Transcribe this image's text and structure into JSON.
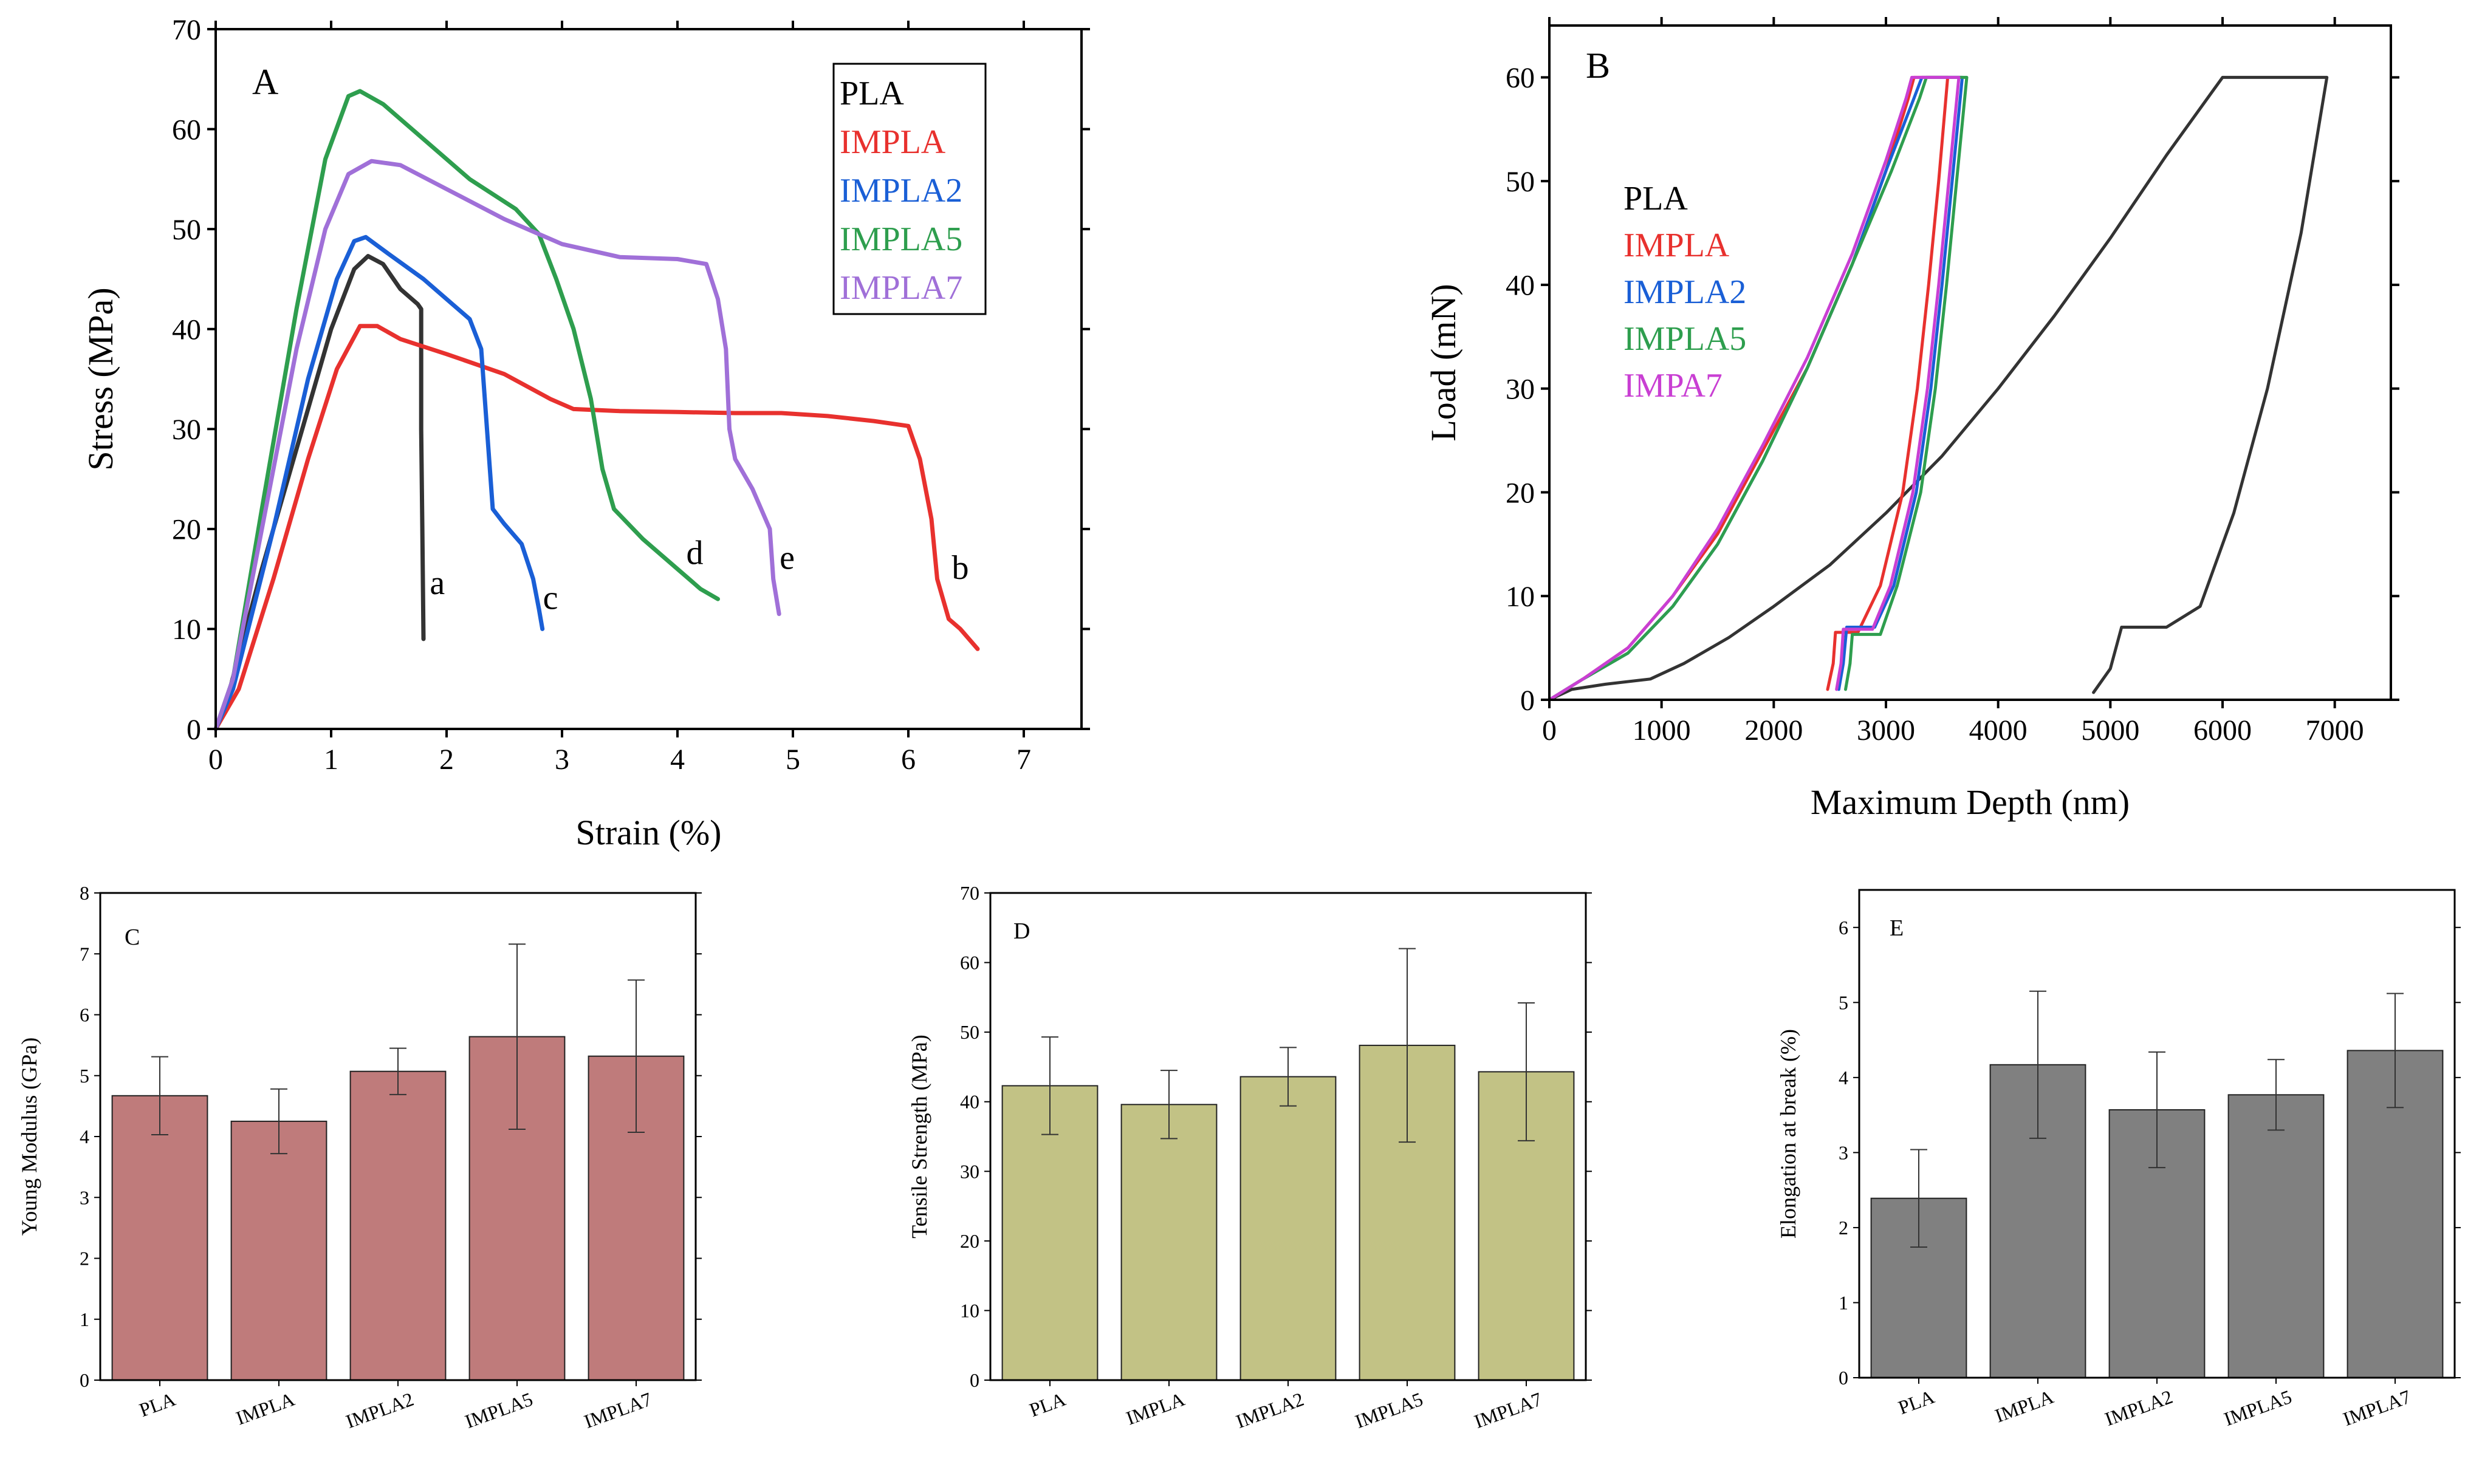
{
  "chart_data": [
    {
      "id": "A",
      "type": "line",
      "panel_label": "A",
      "xlabel": "Strain (%)",
      "ylabel": "Stress (MPa)",
      "xlim": [
        0,
        7.5
      ],
      "ylim": [
        0,
        70
      ],
      "xticks": [
        0,
        1,
        2,
        3,
        4,
        5,
        6,
        7
      ],
      "yticks": [
        0,
        10,
        20,
        30,
        40,
        50,
        60,
        70
      ],
      "legend": [
        "PLA",
        "IMPLA",
        "IMPLA2",
        "IMPLA5",
        "IMPLA7"
      ],
      "series": [
        {
          "name": "PLA",
          "color": "#333333",
          "points": [
            [
              0,
              0
            ],
            [
              0.1,
              3
            ],
            [
              0.4,
              16
            ],
            [
              0.8,
              32
            ],
            [
              1.0,
              40
            ],
            [
              1.2,
              46
            ],
            [
              1.32,
              47.3
            ],
            [
              1.45,
              46.5
            ],
            [
              1.6,
              44
            ],
            [
              1.75,
              42.5
            ],
            [
              1.78,
              42
            ],
            [
              1.78,
              30
            ],
            [
              1.79,
              20
            ],
            [
              1.8,
              9
            ]
          ]
        },
        {
          "name": "IMPLA",
          "color": "#e8312e",
          "points": [
            [
              0,
              0
            ],
            [
              0.2,
              4
            ],
            [
              0.5,
              15
            ],
            [
              0.8,
              27
            ],
            [
              1.05,
              36
            ],
            [
              1.25,
              40.3
            ],
            [
              1.4,
              40.3
            ],
            [
              1.6,
              39
            ],
            [
              2.0,
              37.5
            ],
            [
              2.5,
              35.5
            ],
            [
              2.9,
              33
            ],
            [
              3.1,
              32
            ],
            [
              3.5,
              31.8
            ],
            [
              4.0,
              31.7
            ],
            [
              4.5,
              31.6
            ],
            [
              4.9,
              31.6
            ],
            [
              5.3,
              31.3
            ],
            [
              5.7,
              30.8
            ],
            [
              6.0,
              30.3
            ],
            [
              6.1,
              27
            ],
            [
              6.2,
              21
            ],
            [
              6.25,
              15
            ],
            [
              6.3,
              13
            ],
            [
              6.35,
              11
            ],
            [
              6.45,
              10
            ],
            [
              6.6,
              8
            ]
          ]
        },
        {
          "name": "IMPLA2",
          "color": "#1a5fd6",
          "points": [
            [
              0,
              0
            ],
            [
              0.15,
              4
            ],
            [
              0.5,
              20
            ],
            [
              0.8,
              35
            ],
            [
              1.05,
              45
            ],
            [
              1.2,
              48.8
            ],
            [
              1.3,
              49.2
            ],
            [
              1.5,
              47.5
            ],
            [
              1.8,
              45
            ],
            [
              2.05,
              42.5
            ],
            [
              2.2,
              41
            ],
            [
              2.3,
              38
            ],
            [
              2.35,
              30
            ],
            [
              2.4,
              22
            ],
            [
              2.5,
              20.5
            ],
            [
              2.65,
              18.5
            ],
            [
              2.75,
              15
            ],
            [
              2.8,
              12
            ],
            [
              2.83,
              10
            ]
          ]
        },
        {
          "name": "IMPLA5",
          "color": "#2e9e4e",
          "points": [
            [
              0,
              0
            ],
            [
              0.15,
              5
            ],
            [
              0.4,
              22
            ],
            [
              0.7,
              42
            ],
            [
              0.95,
              57
            ],
            [
              1.15,
              63.3
            ],
            [
              1.25,
              63.8
            ],
            [
              1.45,
              62.5
            ],
            [
              1.8,
              59
            ],
            [
              2.2,
              55
            ],
            [
              2.6,
              52
            ],
            [
              2.8,
              49.5
            ],
            [
              2.95,
              45
            ],
            [
              3.1,
              40
            ],
            [
              3.25,
              33
            ],
            [
              3.35,
              26
            ],
            [
              3.45,
              22
            ],
            [
              3.7,
              19
            ],
            [
              4.0,
              16
            ],
            [
              4.2,
              14
            ],
            [
              4.35,
              13
            ]
          ]
        },
        {
          "name": "IMPLA7",
          "color": "#a070d8",
          "points": [
            [
              0,
              0
            ],
            [
              0.15,
              5
            ],
            [
              0.4,
              20
            ],
            [
              0.7,
              38
            ],
            [
              0.95,
              50
            ],
            [
              1.15,
              55.5
            ],
            [
              1.35,
              56.8
            ],
            [
              1.6,
              56.4
            ],
            [
              2.0,
              54
            ],
            [
              2.5,
              51
            ],
            [
              3.0,
              48.5
            ],
            [
              3.5,
              47.2
            ],
            [
              4.0,
              47
            ],
            [
              4.25,
              46.5
            ],
            [
              4.35,
              43
            ],
            [
              4.42,
              38
            ],
            [
              4.45,
              30
            ],
            [
              4.5,
              27
            ],
            [
              4.65,
              24
            ],
            [
              4.8,
              20
            ],
            [
              4.83,
              15
            ],
            [
              4.88,
              11.5
            ]
          ]
        }
      ],
      "annotations": [
        {
          "text": "a",
          "x": 1.92,
          "y": 13.5
        },
        {
          "text": "b",
          "x": 6.45,
          "y": 15
        },
        {
          "text": "c",
          "x": 2.9,
          "y": 12
        },
        {
          "text": "d",
          "x": 4.15,
          "y": 16.5
        },
        {
          "text": "e",
          "x": 4.95,
          "y": 16
        }
      ]
    },
    {
      "id": "B",
      "type": "line",
      "panel_label": "B",
      "xlabel": "Maximum Depth (nm)",
      "ylabel": "Load (mN)",
      "xlim": [
        0,
        7500
      ],
      "ylim": [
        0,
        65
      ],
      "xticks": [
        0,
        1000,
        2000,
        3000,
        4000,
        5000,
        6000,
        7000
      ],
      "yticks": [
        0,
        10,
        20,
        30,
        40,
        50,
        60
      ],
      "legend": [
        "PLA",
        "IMPLA",
        "IMPLA2",
        "IMPLA5",
        "IMPA7"
      ],
      "series": [
        {
          "name": "PLA",
          "color": "#333333",
          "points": [
            [
              0,
              0
            ],
            [
              200,
              1
            ],
            [
              500,
              1.5
            ],
            [
              900,
              2
            ],
            [
              1200,
              3.5
            ],
            [
              1600,
              6
            ],
            [
              2000,
              9
            ],
            [
              2500,
              13
            ],
            [
              3000,
              18
            ],
            [
              3500,
              23.5
            ],
            [
              4000,
              30
            ],
            [
              4500,
              37
            ],
            [
              5000,
              44.5
            ],
            [
              5500,
              52.5
            ],
            [
              5900,
              58.5
            ],
            [
              6000,
              60
            ],
            [
              6930,
              60
            ],
            [
              6700,
              45
            ],
            [
              6400,
              30
            ],
            [
              6100,
              18
            ],
            [
              5800,
              9
            ],
            [
              5500,
              7
            ],
            [
              5100,
              7
            ],
            [
              5000,
              3
            ],
            [
              4850,
              0.7
            ]
          ]
        },
        {
          "name": "IMPLA",
          "color": "#e8312e",
          "points": [
            [
              0,
              0
            ],
            [
              300,
              2
            ],
            [
              700,
              5
            ],
            [
              1100,
              10
            ],
            [
              1500,
              16
            ],
            [
              1900,
              24
            ],
            [
              2300,
              32
            ],
            [
              2700,
              42
            ],
            [
              3000,
              51
            ],
            [
              3200,
              58
            ],
            [
              3250,
              60
            ],
            [
              3550,
              60
            ],
            [
              3470,
              50
            ],
            [
              3380,
              40
            ],
            [
              3280,
              30
            ],
            [
              3150,
              20
            ],
            [
              2950,
              11
            ],
            [
              2750,
              6.5
            ],
            [
              2550,
              6.5
            ],
            [
              2530,
              3.5
            ],
            [
              2480,
              1
            ]
          ]
        },
        {
          "name": "IMPLA2",
          "color": "#1a5fd6",
          "points": [
            [
              0,
              0
            ],
            [
              300,
              2
            ],
            [
              700,
              4.5
            ],
            [
              1100,
              9
            ],
            [
              1500,
              15
            ],
            [
              1900,
              23
            ],
            [
              2300,
              32
            ],
            [
              2700,
              42
            ],
            [
              3000,
              51
            ],
            [
              3250,
              58
            ],
            [
              3320,
              60
            ],
            [
              3680,
              60
            ],
            [
              3590,
              50
            ],
            [
              3500,
              40
            ],
            [
              3400,
              30
            ],
            [
              3270,
              20
            ],
            [
              3070,
              11
            ],
            [
              2900,
              7
            ],
            [
              2650,
              7
            ],
            [
              2620,
              3.5
            ],
            [
              2580,
              1
            ]
          ]
        },
        {
          "name": "IMPLA5",
          "color": "#2e9e4e",
          "points": [
            [
              0,
              0
            ],
            [
              300,
              2
            ],
            [
              700,
              4.5
            ],
            [
              1100,
              9
            ],
            [
              1500,
              15
            ],
            [
              1900,
              23
            ],
            [
              2300,
              32
            ],
            [
              2700,
              42
            ],
            [
              3050,
              51
            ],
            [
              3300,
              58
            ],
            [
              3360,
              60
            ],
            [
              3720,
              60
            ],
            [
              3630,
              50
            ],
            [
              3540,
              40
            ],
            [
              3440,
              30
            ],
            [
              3310,
              20
            ],
            [
              3100,
              11
            ],
            [
              2950,
              6.3
            ],
            [
              2700,
              6.3
            ],
            [
              2680,
              3.5
            ],
            [
              2640,
              1
            ]
          ]
        },
        {
          "name": "IMPA7",
          "color": "#c93fd3",
          "points": [
            [
              0,
              0
            ],
            [
              300,
              2
            ],
            [
              700,
              5
            ],
            [
              1100,
              10
            ],
            [
              1500,
              16.5
            ],
            [
              1900,
              24.5
            ],
            [
              2300,
              33
            ],
            [
              2700,
              43
            ],
            [
              3000,
              52
            ],
            [
              3180,
              58
            ],
            [
              3230,
              60
            ],
            [
              3650,
              60
            ],
            [
              3560,
              50
            ],
            [
              3470,
              40
            ],
            [
              3370,
              30
            ],
            [
              3240,
              20
            ],
            [
              3040,
              11
            ],
            [
              2880,
              6.8
            ],
            [
              2620,
              6.8
            ],
            [
              2600,
              3.5
            ],
            [
              2560,
              1
            ]
          ]
        }
      ]
    },
    {
      "id": "C",
      "type": "bar",
      "panel_label": "C",
      "ylabel": "Young Modulus (GPa)",
      "xlabel": "",
      "ylim": [
        0,
        8
      ],
      "yticks": [
        0,
        1,
        2,
        3,
        4,
        5,
        6,
        7,
        8
      ],
      "categories": [
        "PLA",
        "IMPLA",
        "IMPLA2",
        "IMPLA5",
        "IMPLA7"
      ],
      "values": [
        4.67,
        4.25,
        5.07,
        5.64,
        5.32
      ],
      "errors": [
        0.64,
        0.53,
        0.38,
        1.52,
        1.25
      ],
      "color": "#bf7b7b"
    },
    {
      "id": "D",
      "type": "bar",
      "panel_label": "D",
      "ylabel": "Tensile Strength (MPa)",
      "xlabel": "",
      "ylim": [
        0,
        70
      ],
      "yticks": [
        0,
        10,
        20,
        30,
        40,
        50,
        60,
        70
      ],
      "categories": [
        "PLA",
        "IMPLA",
        "IMPLA2",
        "IMPLA5",
        "IMPLA7"
      ],
      "values": [
        42.3,
        39.6,
        43.6,
        48.1,
        44.3
      ],
      "errors": [
        7.0,
        4.9,
        4.2,
        13.9,
        9.9
      ],
      "color": "#c2c285"
    },
    {
      "id": "E",
      "type": "bar",
      "panel_label": "E",
      "ylabel": "Elongation at break (%)",
      "xlabel": "",
      "ylim": [
        0,
        6.5
      ],
      "yticks": [
        0,
        1,
        2,
        3,
        4,
        5,
        6
      ],
      "categories": [
        "PLA",
        "IMPLA",
        "IMPLA2",
        "IMPLA5",
        "IMPLA7"
      ],
      "values": [
        2.39,
        4.17,
        3.57,
        3.77,
        4.36
      ],
      "errors": [
        0.65,
        0.98,
        0.77,
        0.47,
        0.76
      ],
      "color": "#808080"
    }
  ]
}
